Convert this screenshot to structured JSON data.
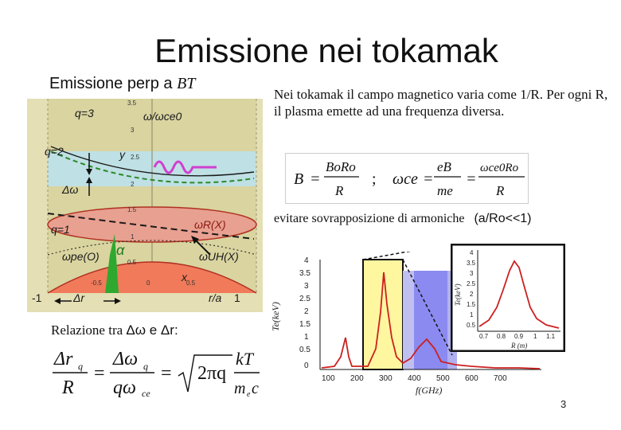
{
  "slide": {
    "title": "Emissione nei tokamak",
    "subtitle": "Emissione perp a",
    "subtitle_symbol": "BT",
    "description": "Nei tokamak il campo magnetico varia come 1/R. Per ogni R, il plasma emette ad una frequenza diversa.",
    "formula": {
      "B_lhs": "B",
      "B_num": "BoRo",
      "B_den": "R",
      "sep": ";",
      "w_lhs": "ωce",
      "w_num1": "eB",
      "w_den1": "me",
      "w_num2": "ωce0Ro",
      "w_den2": "R"
    },
    "avoid_text": "evitare sovrapposizione di armoniche",
    "avoid_condition": "(a/Ro<<1)",
    "relation_text": "Relazione tra",
    "relation_symbols": "Δω e Δr:",
    "page_number": "3"
  },
  "left_plot": {
    "labels": {
      "q3": "q=3",
      "q2": "q=2",
      "q1": "q=1",
      "omega_ratio": "ω/ωce0",
      "delta_omega": "Δω",
      "omega_r": "ωR(X)",
      "omega_pe": "ωpe(O)",
      "alpha": "α",
      "omega_uh": "ωUH(X)",
      "delta_r": "Δr",
      "r_over_a": "r/a",
      "x_neg1": "-1",
      "x_pos1": "1",
      "y_letter": "y",
      "x_letter": "x"
    },
    "ticks_y": [
      "3.5",
      "3",
      "2.5",
      "2",
      "1.5",
      "1",
      "0.5"
    ],
    "ticks_x": [
      "-0.5",
      "0",
      "0.5"
    ]
  },
  "spectrum_plot": {
    "ylabel": "Te(keV)",
    "xlabel": "f(GHz)",
    "yticks": [
      "4",
      "3.5",
      "3",
      "2.5",
      "2",
      "1.5",
      "1",
      "0.5",
      "0"
    ],
    "xticks": [
      "100",
      "200",
      "300",
      "400",
      "500",
      "600",
      "700"
    ]
  },
  "inset_plot": {
    "ylabel": "Te(keV)",
    "xlabel": "R (m)",
    "yticks": [
      "4",
      "3.5",
      "3",
      "2.5",
      "2",
      "1.5",
      "1",
      "0.5"
    ],
    "xticks": [
      "0.7",
      "0.8",
      "0.9",
      "1",
      "1.1"
    ]
  },
  "colors": {
    "background": "#ffffff",
    "plot_bg": "#d9d4a0",
    "band_cyan": "#bfe0e4",
    "ellipse_fill": "#e8a090",
    "bottom_fill": "#f07a5a",
    "green": "#2fa82f",
    "spectrum_red": "#cc2020",
    "yellow_highlight": "#fff6a0",
    "blue_highlight": "#8a8af0"
  }
}
